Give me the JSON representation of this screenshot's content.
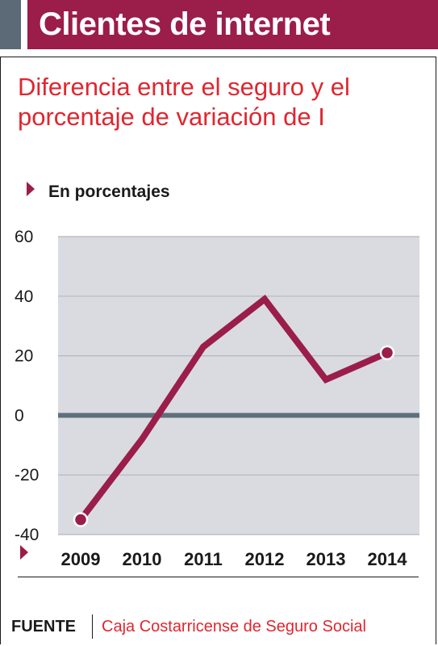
{
  "header": {
    "title": "Clientes de internet"
  },
  "subtitle": "Diferencia entre el seguro y el porcentaje de variación de I",
  "unit_label": "En porcentajes",
  "source": {
    "label": "FUENTE",
    "text": "Caja Costarricense de Seguro Social"
  },
  "colors": {
    "accent_gray": "#5c6a77",
    "brand_maroon": "#9b1d49",
    "title_red": "#e0262f",
    "plot_bg": "#d9dbe0",
    "zero_line": "#5f6f7d",
    "gridline": "#b3b7be"
  },
  "chart_data": {
    "type": "line",
    "title": "Diferencia entre el seguro y el porcentaje de variación de I",
    "ylabel": "En porcentajes",
    "xlabel": "",
    "categories": [
      "2009",
      "2010",
      "2011",
      "2012",
      "2013",
      "2014"
    ],
    "series": [
      {
        "values": [
          -35,
          -8,
          23,
          39,
          12,
          21
        ]
      }
    ],
    "ylim": [
      -40,
      60
    ],
    "yticks": [
      60,
      40,
      20,
      0,
      -20,
      -40
    ],
    "endpoint_markers": true,
    "grid": true
  }
}
